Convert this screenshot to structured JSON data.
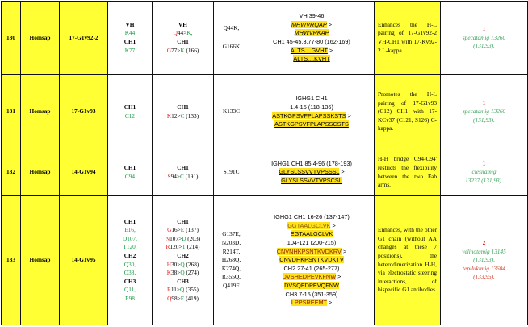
{
  "rows": [
    {
      "num": "180",
      "species": "Homsap",
      "name": "17-G1v92-2",
      "col4": [
        {
          "h": "VH"
        },
        {
          "g": "K44"
        },
        {
          "h": "CH1"
        },
        {
          "g": "K77"
        }
      ],
      "col5": [
        {
          "h": "VH"
        },
        {
          "r": "Q",
          "m": "44>",
          "g": "K,"
        },
        {
          "h": "CH1"
        },
        {
          "r": "G",
          "m": "77>",
          "g": "K",
          "t": " (166)"
        }
      ],
      "col6": [
        "Q44K,",
        "G166K"
      ],
      "seq": {
        "l1": "VH 39-46",
        "l2": "MHWVRQAP",
        "l2b": ">",
        "l3": "MHWVRKAP",
        "l4": "CH1 45-45.3,77-80 (162-169)",
        "l5": "ALTS....GVHT",
        "l5b": ">",
        "l6": "ALTS....KVHT"
      },
      "comment": "Enhances the H-L pairing of 17-G1v92-2 VH-CH1 with 17-Kv92-2 L-kappa.",
      "count": "1",
      "cites": [
        {
          "name": "specatamig 13260",
          "ref": "(131,93)."
        }
      ]
    },
    {
      "num": "181",
      "species": "Homsap",
      "name": "17-G1v93",
      "col4": [
        {
          "h": "CH1"
        },
        {
          "g": "C12"
        }
      ],
      "col5": [
        {
          "h": "CH1"
        },
        {
          "r": "K",
          "m": "12>",
          "g": "C",
          "t": " (133)"
        }
      ],
      "col6": [
        "K133C"
      ],
      "seq": {
        "l1": "IGHG1 CH1",
        "l2": "1.4-15 (118-136)",
        "l3": "ASTKGPSVFPLAPSSKSTS",
        "l3b": ">",
        "l4": "ASTKGPSVFPLAPSSCSTS"
      },
      "comment": "Promotes the H-L pairing of 17-G1v93 (C12) CH1 with 17-KCv37 (C121, S126) C-kappa.",
      "count": "1",
      "cites": [
        {
          "name": "specatamig 13260",
          "ref": "(131,93)."
        }
      ]
    },
    {
      "num": "182",
      "species": "Homsap",
      "name": "14-G1v94",
      "col4": [
        {
          "h": "CH1"
        },
        {
          "g": "C94"
        }
      ],
      "col5": [
        {
          "h": "CH1"
        },
        {
          "r": "S",
          "m": "94>",
          "g": "C",
          "t": " (191)"
        }
      ],
      "col6": [
        "S191C"
      ],
      "seq": {
        "l1": "IGHG1 CH1 85.4-96 (178-193)",
        "l2": "GLYSLSSVVTVPSSSL",
        "l2b": ">",
        "l3": "GLYSLSSVVTVPSCSL"
      },
      "comment": "H-H bridge C94-C94' restricts the flexibility between the two Fab arms.",
      "count": "1",
      "cites": [
        {
          "name": "clesitamig",
          "ref": "13237 (131,93)."
        }
      ]
    },
    {
      "num": "183",
      "species": "Homsap",
      "name": "14-G1v95",
      "col4": [
        {
          "h": "CH1"
        },
        {
          "g": "E16,"
        },
        {
          "g": "D107,"
        },
        {
          "g": "T120,"
        },
        {
          "h": "CH2"
        },
        {
          "g": "Q30,"
        },
        {
          "g": "Q38,"
        },
        {
          "h": "CH3"
        },
        {
          "g": "Q11,"
        },
        {
          "g": "E98"
        }
      ],
      "col5": [
        {
          "h": "CH1"
        },
        {
          "r": "G",
          "m": "16>",
          "g": "E",
          "t": " (137)"
        },
        {
          "r": "N",
          "m": "107>",
          "g": "D",
          "t": " (203)"
        },
        {
          "r": "R",
          "m": "120>",
          "g": "T",
          "t": " (214)"
        },
        {
          "h": "CH2"
        },
        {
          "r": "H",
          "m": "30>",
          "g": "Q",
          "t": " (268)"
        },
        {
          "r": "K",
          "m": "38>",
          "g": "Q",
          "t": " (274)"
        },
        {
          "h": "CH3"
        },
        {
          "r": "R",
          "m": "11>",
          "g": "Q",
          "t": " (355)"
        },
        {
          "r": "Q",
          "m": "98>",
          "g": "E",
          "t": " (419)"
        }
      ],
      "col6": [
        "G137E,",
        "N203D,",
        "R214T,",
        "H268Q,",
        "K274Q,",
        "R355Q,",
        "Q419E"
      ],
      "seq": {
        "l1": "IGHG1 CH1 16-26 (137-147)",
        "l2": "GGTAALGCLVK",
        "l2b": ">",
        "l3": "EGTAALGCLVK",
        "l4": "104-121 (200-215)",
        "l5": "CNVNHKPSNTKVDKRV",
        "l5b": ">",
        "l6": "CNVDHKPSNTKVDKTV",
        "l7": "CH2 27-41 (265-277)",
        "l8": "DVSHEDPEVKFNW",
        "l8b": ">",
        "l9": "DVSQEDPEVQFNW",
        "l10": "CH3   7-15 (351-359)",
        "l11": "LPPSREEMT",
        "l11b": ">"
      },
      "comment": "Enhances, with the other G1 chain (without AA changes at these 7 positions), the heterodimerization H-H, via electrostatic steering interactions, of bispecific G1 antibodies.",
      "count": "2",
      "cites": [
        {
          "name": "velinotamig 13145",
          "ref": "(131,93),"
        },
        {
          "name": "tepilukimig 13604",
          "ref": "(133,95)."
        }
      ]
    }
  ],
  "colors": {
    "yellow": "#ffff33",
    "green": "#129a3e",
    "red": "#e0201f",
    "highlight": "#ffe11a"
  }
}
